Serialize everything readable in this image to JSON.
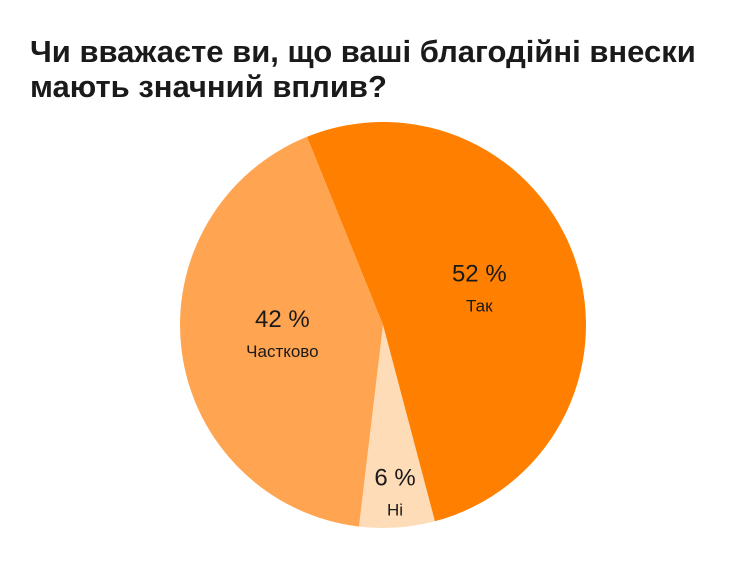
{
  "chart_data": {
    "type": "pie",
    "title": "Чи вважаєте ви, що ваші благодійні внески мають значний вплив?",
    "slices": [
      {
        "label": "Так",
        "value": 52,
        "value_label": "52 %",
        "color": "#ff7f00"
      },
      {
        "label": "Ні",
        "value": 6,
        "value_label": "6 %",
        "color": "#ffdcb8"
      },
      {
        "label": "Частково",
        "value": 42,
        "value_label": "42 %",
        "color": "#ffa552"
      }
    ]
  }
}
